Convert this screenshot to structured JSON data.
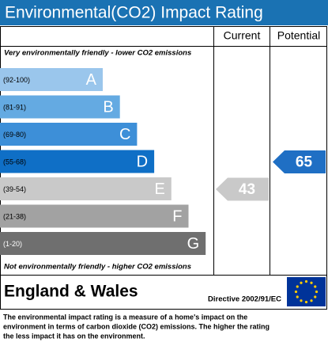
{
  "chart_data": {
    "type": "rating",
    "title": "Environmental(CO2) Impact Rating",
    "columns": [
      "Current",
      "Potential"
    ],
    "top_note": "Very environmentally friendly - lower CO2 emissions",
    "bottom_note": "Not environmentally friendly - higher CO2 emissions",
    "bands": [
      {
        "range": "(92-100)",
        "letter": "A",
        "color": "#9ac6ec"
      },
      {
        "range": "(81-91)",
        "letter": "B",
        "color": "#64aae2"
      },
      {
        "range": "(69-80)",
        "letter": "C",
        "color": "#3d8fd8"
      },
      {
        "range": "(55-68)",
        "letter": "D",
        "color": "#0f6fc6"
      },
      {
        "range": "(39-54)",
        "letter": "E",
        "color": "#c9c9c9"
      },
      {
        "range": "(21-38)",
        "letter": "F",
        "color": "#a2a2a2"
      },
      {
        "range": "(1-20)",
        "letter": "G",
        "color": "#6f6f6f"
      }
    ],
    "current": {
      "value": 43,
      "color": "#c9c9c9"
    },
    "potential": {
      "value": 65,
      "color": "#1f6fc4"
    },
    "region": "England & Wales",
    "directive": "Directive 2002/91/EC",
    "description": [
      "The environmental impact rating is a measure of a home's impact on the",
      "environment in terms of carbon dioxide (CO2) emissions. The higher the rating",
      "the less impact it has on the environment."
    ]
  }
}
